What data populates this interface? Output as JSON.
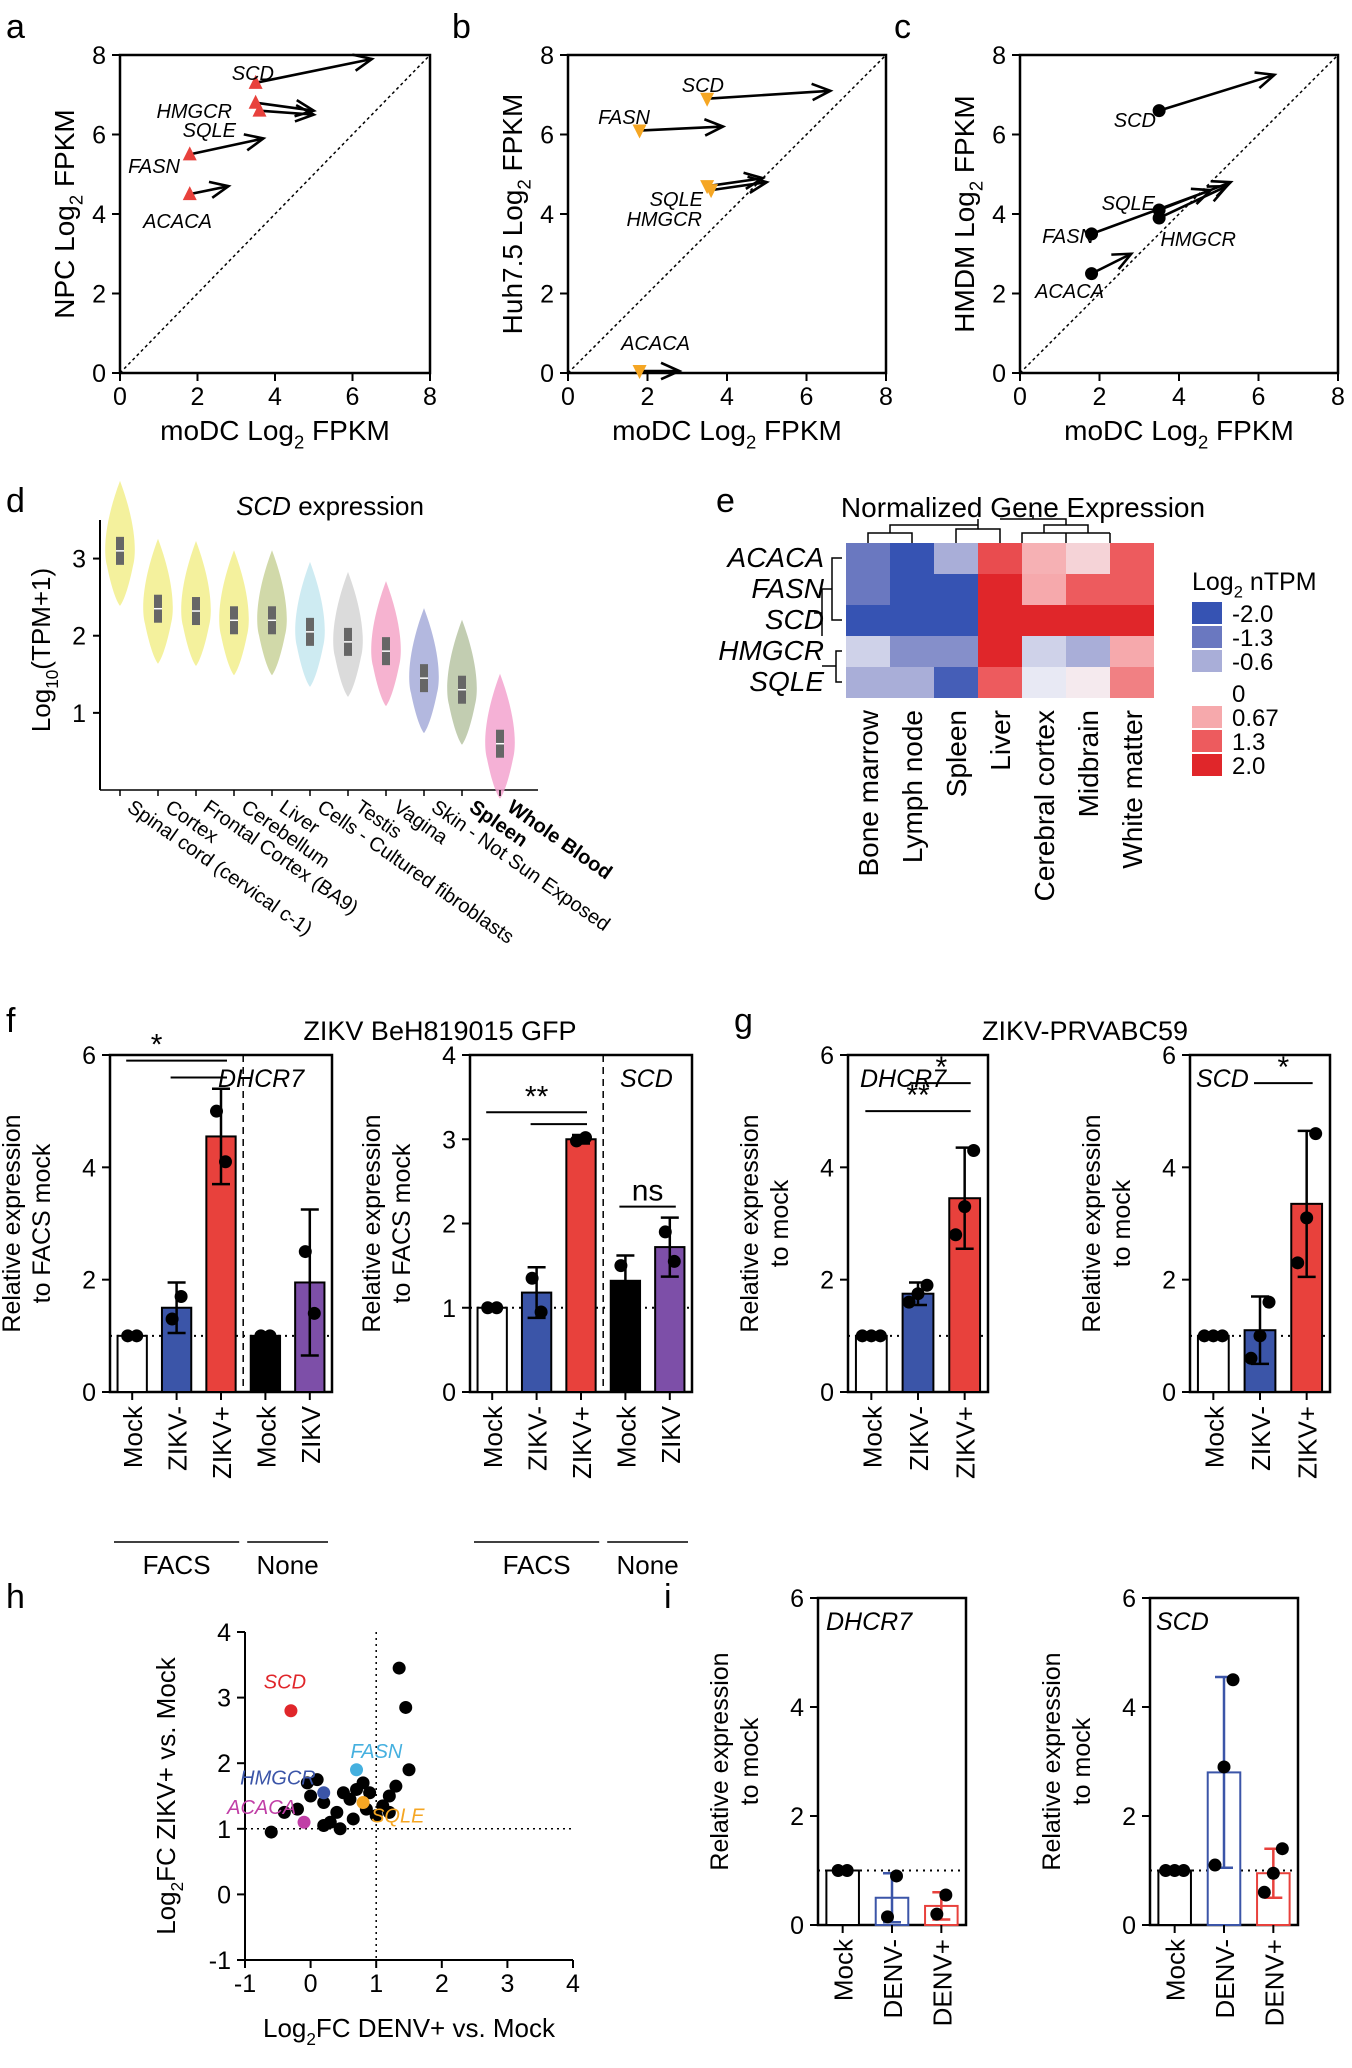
{
  "colors": {
    "red": "#e8413c",
    "orange": "#f5a623",
    "black": "#000000",
    "blue": "#3b55a8",
    "purple": "#7d4fa8",
    "hm_neg2": "#3653b3",
    "hm_neg13": "#6a78c0",
    "hm_neg06": "#a9aed8",
    "hm_zero": "#ffffff",
    "hm_067": "#f6a9ac",
    "hm_13": "#ed5b5e",
    "hm_2": "#e0262a",
    "fasn_label": "#45b0df",
    "hmgcr_label": "#3b55a8",
    "acaca_label": "#c03ea6",
    "sqle_label": "#f5a623",
    "scd_label": "#e0262a"
  },
  "panels": {
    "a": "a",
    "b": "b",
    "c": "c",
    "d": "d",
    "e": "e",
    "f": "f",
    "g": "g",
    "h": "h",
    "i": "i"
  },
  "chart_data": [
    {
      "id": "a",
      "type": "scatter",
      "xlabel": "moDC Log",
      "xlabel_sub": "2",
      "xlabel_tail": " FPKM",
      "ylabel": "NPC Log",
      "ylabel_sub": "2",
      "ylabel_tail": " FPKM",
      "xlim": [
        0,
        8
      ],
      "ylim": [
        0,
        8
      ],
      "xticks": [
        "0",
        "2",
        "4",
        "6",
        "8"
      ],
      "yticks": [
        "0",
        "2",
        "4",
        "6",
        "8"
      ],
      "points": [
        {
          "gene": "SCD",
          "x": 3.5,
          "y": 7.3,
          "tx": 6.5,
          "ty": 7.9
        },
        {
          "gene": "HMGCR",
          "x": 3.5,
          "y": 6.8,
          "tx": 5.0,
          "ty": 6.6
        },
        {
          "gene": "SQLE",
          "x": 3.6,
          "y": 6.6,
          "tx": 5.0,
          "ty": 6.5
        },
        {
          "gene": "FASN",
          "x": 1.8,
          "y": 5.5,
          "tx": 3.7,
          "ty": 5.9
        },
        {
          "gene": "ACACA",
          "x": 1.8,
          "y": 4.5,
          "tx": 2.8,
          "ty": 4.7
        }
      ]
    },
    {
      "id": "b",
      "type": "scatter",
      "xlabel": "moDC Log",
      "xlabel_sub": "2",
      "xlabel_tail": " FPKM",
      "ylabel": "Huh7.5 Log",
      "ylabel_sub": "2",
      "ylabel_tail": " FPKM",
      "xlim": [
        0,
        8
      ],
      "ylim": [
        0,
        8
      ],
      "xticks": [
        "0",
        "2",
        "4",
        "6",
        "8"
      ],
      "yticks": [
        "0",
        "2",
        "4",
        "6",
        "8"
      ],
      "points": [
        {
          "gene": "SCD",
          "x": 3.5,
          "y": 6.9,
          "tx": 6.6,
          "ty": 7.1
        },
        {
          "gene": "FASN",
          "x": 1.8,
          "y": 6.1,
          "tx": 3.9,
          "ty": 6.2
        },
        {
          "gene": "SQLE",
          "x": 3.5,
          "y": 4.7,
          "tx": 4.9,
          "ty": 4.9
        },
        {
          "gene": "HMGCR",
          "x": 3.6,
          "y": 4.6,
          "tx": 5.0,
          "ty": 4.8
        },
        {
          "gene": "ACACA",
          "x": 1.8,
          "y": 0.05,
          "tx": 2.8,
          "ty": 0.05
        }
      ]
    },
    {
      "id": "c",
      "type": "scatter",
      "xlabel": "moDC Log",
      "xlabel_sub": "2",
      "xlabel_tail": " FPKM",
      "ylabel": "HMDM Log",
      "ylabel_sub": "2",
      "ylabel_tail": " FPKM",
      "xlim": [
        0,
        8
      ],
      "ylim": [
        0,
        8
      ],
      "xticks": [
        "0",
        "2",
        "4",
        "6",
        "8"
      ],
      "yticks": [
        "0",
        "2",
        "4",
        "6",
        "8"
      ],
      "points": [
        {
          "gene": "SCD",
          "x": 3.5,
          "y": 6.6,
          "tx": 6.4,
          "ty": 7.5
        },
        {
          "gene": "SQLE",
          "x": 3.5,
          "y": 4.1,
          "tx": 5.3,
          "ty": 4.8
        },
        {
          "gene": "HMGCR",
          "x": 3.5,
          "y": 3.9,
          "tx": 5.2,
          "ty": 4.7
        },
        {
          "gene": "FASN",
          "x": 1.8,
          "y": 3.5,
          "tx": 4.8,
          "ty": 4.6
        },
        {
          "gene": "ACACA",
          "x": 1.8,
          "y": 2.5,
          "tx": 2.8,
          "ty": 3.0
        }
      ]
    },
    {
      "id": "d",
      "type": "violin",
      "title": "SCD",
      "title_tail": " expression",
      "ylabel": "Log",
      "ylabel_sub": "10",
      "ylabel_tail": "(TPM+1)",
      "ylim": [
        0,
        3.5
      ],
      "yticks": [
        "1",
        "2",
        "3"
      ],
      "categories": [
        "Spinal cord (cervical c-1)",
        "Cortex",
        "Frontal Cortex (BA9)",
        "Cerebellum",
        "Liver",
        "Cells - Cultured fibroblasts",
        "Testis",
        "Vagina",
        "Skin - Not Sun Exposed",
        "Spleen",
        "Whole Blood"
      ],
      "bold": [
        false,
        false,
        false,
        false,
        false,
        false,
        false,
        false,
        false,
        true,
        true
      ],
      "medians": [
        3.1,
        2.35,
        2.32,
        2.2,
        2.2,
        2.05,
        1.92,
        1.8,
        1.45,
        1.3,
        0.6
      ],
      "colors": [
        "#f2ef8c",
        "#f2ef8c",
        "#f2ef8c",
        "#f2ef8c",
        "#c9d29a",
        "#c6e7f0",
        "#d5d5d5",
        "#f5a6c8",
        "#a6acd9",
        "#b7c4a3",
        "#f3a3cf"
      ]
    },
    {
      "id": "e",
      "type": "heatmap",
      "title": "Normalized Gene Expression",
      "rows": [
        "ACACA",
        "FASN",
        "SCD",
        "HMGCR",
        "SQLE"
      ],
      "columns": [
        "Bone marrow",
        "Lymph node",
        "Spleen",
        "Liver",
        "Cerebral cortex",
        "Midbrain",
        "White matter"
      ],
      "values": [
        [
          -1.3,
          -2.0,
          -0.6,
          1.5,
          0.6,
          0.3,
          1.3
        ],
        [
          -1.3,
          -2.0,
          -2.0,
          2.0,
          0.67,
          1.3,
          1.3
        ],
        [
          -2.0,
          -2.0,
          -2.0,
          2.0,
          2.0,
          2.0,
          2.0
        ],
        [
          -0.3,
          -1.0,
          -1.0,
          2.0,
          -0.3,
          -0.6,
          0.67
        ],
        [
          -0.6,
          -0.6,
          -1.8,
          1.3,
          -0.1,
          0.1,
          1.0
        ]
      ],
      "legend_title": "Log",
      "legend_sub": "2",
      "legend_tail": " nTPM",
      "legend": [
        "-2.0",
        "-1.3",
        "-0.6",
        "0",
        "0.67",
        "1.3",
        "2.0"
      ]
    },
    {
      "id": "f1",
      "type": "bar",
      "group_title": "ZIKV BeH819015 GFP",
      "gene": "DHCR7",
      "ylabel1": "Relative expression",
      "ylabel2": "to FACS mock",
      "ylim": [
        0,
        6
      ],
      "yticks": [
        "0",
        "2",
        "4",
        "6"
      ],
      "categories": [
        "Mock",
        "ZIKV-",
        "ZIKV+",
        "Mock",
        "ZIKV"
      ],
      "values": [
        1.0,
        1.5,
        4.55,
        1.0,
        1.95
      ],
      "errors": [
        0,
        0.45,
        0.85,
        0,
        1.3
      ],
      "points": [
        [
          1.0,
          1.0
        ],
        [
          1.3,
          1.7
        ],
        [
          5.0,
          4.1
        ],
        [
          1.0,
          1.0
        ],
        [
          2.5,
          1.4
        ]
      ],
      "fills": [
        "#ffffff",
        "#3b55a8",
        "#e8413c",
        "#000000",
        "#7d4fa8"
      ],
      "groups": [
        "FACS",
        "None"
      ],
      "sig": [
        "*"
      ]
    },
    {
      "id": "f2",
      "type": "bar",
      "gene": "SCD",
      "ylabel1": "Relative expression",
      "ylabel2": "to FACS mock",
      "ylim": [
        0,
        4
      ],
      "yticks": [
        "0",
        "1",
        "2",
        "3",
        "4"
      ],
      "categories": [
        "Mock",
        "ZIKV-",
        "ZIKV+",
        "Mock",
        "ZIKV"
      ],
      "values": [
        1.0,
        1.18,
        3.0,
        1.32,
        1.72
      ],
      "errors": [
        0,
        0.3,
        0.05,
        0.3,
        0.35
      ],
      "points": [
        [
          1.0,
          1.0
        ],
        [
          1.35,
          0.95
        ],
        [
          2.98,
          3.02
        ],
        [
          1.5,
          1.15
        ],
        [
          1.9,
          1.55
        ]
      ],
      "fills": [
        "#ffffff",
        "#3b55a8",
        "#e8413c",
        "#000000",
        "#7d4fa8"
      ],
      "groups": [
        "FACS",
        "None"
      ],
      "sig": [
        "**",
        "ns"
      ]
    },
    {
      "id": "g1",
      "type": "bar",
      "group_title": "ZIKV-PRVABC59",
      "gene": "DHCR7",
      "ylabel1": "Relative expression",
      "ylabel2": "to mock",
      "ylim": [
        0,
        6
      ],
      "yticks": [
        "0",
        "2",
        "4",
        "6"
      ],
      "categories": [
        "Mock",
        "ZIKV-",
        "ZIKV+"
      ],
      "values": [
        1.0,
        1.75,
        3.45
      ],
      "errors": [
        0,
        0.2,
        0.9
      ],
      "points": [
        [
          1.0,
          1.0,
          1.0
        ],
        [
          1.6,
          1.75,
          1.9
        ],
        [
          2.8,
          3.3,
          4.3
        ]
      ],
      "fills": [
        "#ffffff",
        "#3b55a8",
        "#e8413c"
      ],
      "sig": [
        "**",
        "*"
      ]
    },
    {
      "id": "g2",
      "type": "bar",
      "gene": "SCD",
      "ylabel1": "Relative expression",
      "ylabel2": "to mock",
      "ylim": [
        0,
        6
      ],
      "yticks": [
        "0",
        "2",
        "4",
        "6"
      ],
      "categories": [
        "Mock",
        "ZIKV-",
        "ZIKV+"
      ],
      "values": [
        1.0,
        1.1,
        3.35
      ],
      "errors": [
        0,
        0.6,
        1.3
      ],
      "points": [
        [
          1.0,
          1.0,
          1.0
        ],
        [
          0.6,
          1.0,
          1.6
        ],
        [
          2.3,
          3.1,
          4.6
        ]
      ],
      "fills": [
        "#ffffff",
        "#3b55a8",
        "#e8413c"
      ],
      "sig": [
        "*"
      ]
    },
    {
      "id": "h",
      "type": "scatter",
      "xlabel": "Log",
      "xlabel_sub": "2",
      "xlabel_tail": "FC DENV+ vs. Mock",
      "ylabel": "Log",
      "ylabel_sub": "2",
      "ylabel_tail": "FC ZIKV+ vs. Mock",
      "xlim": [
        -1,
        4
      ],
      "ylim": [
        -1,
        4
      ],
      "xticks": [
        "-1",
        "0",
        "1",
        "2",
        "3",
        "4"
      ],
      "yticks": [
        "-1",
        "0",
        "1",
        "2",
        "3",
        "4"
      ],
      "labeled": [
        {
          "gene": "SCD",
          "x": -0.3,
          "y": 2.8
        },
        {
          "gene": "FASN",
          "x": 0.7,
          "y": 1.9
        },
        {
          "gene": "HMGCR",
          "x": 0.2,
          "y": 1.55
        },
        {
          "gene": "ACACA",
          "x": -0.1,
          "y": 1.1
        },
        {
          "gene": "SQLE",
          "x": 0.8,
          "y": 1.4
        }
      ],
      "points": [
        [
          -0.6,
          0.95
        ],
        [
          -0.4,
          1.25
        ],
        [
          -0.2,
          1.3
        ],
        [
          0.0,
          1.5
        ],
        [
          0.1,
          1.75
        ],
        [
          0.2,
          1.4
        ],
        [
          0.3,
          1.1
        ],
        [
          0.4,
          1.25
        ],
        [
          0.5,
          1.55
        ],
        [
          0.6,
          1.45
        ],
        [
          0.65,
          1.15
        ],
        [
          0.7,
          1.6
        ],
        [
          0.8,
          1.7
        ],
        [
          0.85,
          1.3
        ],
        [
          0.9,
          1.55
        ],
        [
          1.0,
          1.2
        ],
        [
          1.1,
          1.35
        ],
        [
          1.2,
          1.5
        ],
        [
          1.3,
          1.65
        ],
        [
          1.35,
          3.45
        ],
        [
          1.45,
          2.85
        ],
        [
          1.5,
          1.9
        ],
        [
          0.2,
          1.05
        ],
        [
          -0.05,
          1.7
        ],
        [
          0.45,
          1.0
        ],
        [
          1.2,
          1.25
        ]
      ]
    },
    {
      "id": "i1",
      "type": "bar",
      "gene": "DHCR7",
      "ylabel1": "Relative expression",
      "ylabel2": "to mock",
      "ylim": [
        0,
        6
      ],
      "yticks": [
        "0",
        "2",
        "4",
        "6"
      ],
      "categories": [
        "Mock",
        "DENV-",
        "DENV+"
      ],
      "values": [
        1.0,
        0.5,
        0.35
      ],
      "errors": [
        0,
        0.45,
        0.25
      ],
      "points": [
        [
          1.0,
          1.0
        ],
        [
          0.15,
          0.9
        ],
        [
          0.2,
          0.55
        ]
      ],
      "fills": [
        "#ffffff",
        "#ffffff",
        "#ffffff"
      ],
      "strokes": [
        "#000000",
        "#3b55a8",
        "#e8413c"
      ]
    },
    {
      "id": "i2",
      "type": "bar",
      "gene": "SCD",
      "ylabel1": "Relative expression",
      "ylabel2": "to mock",
      "ylim": [
        0,
        6
      ],
      "yticks": [
        "0",
        "2",
        "4",
        "6"
      ],
      "categories": [
        "Mock",
        "DENV-",
        "DENV+"
      ],
      "values": [
        1.0,
        2.8,
        0.95
      ],
      "errors": [
        0,
        1.75,
        0.45
      ],
      "points": [
        [
          1.0,
          1.0,
          1.0
        ],
        [
          1.1,
          2.9,
          4.5
        ],
        [
          0.6,
          0.95,
          1.4
        ]
      ],
      "fills": [
        "#ffffff",
        "#ffffff",
        "#ffffff"
      ],
      "strokes": [
        "#000000",
        "#3b55a8",
        "#e8413c"
      ]
    }
  ]
}
